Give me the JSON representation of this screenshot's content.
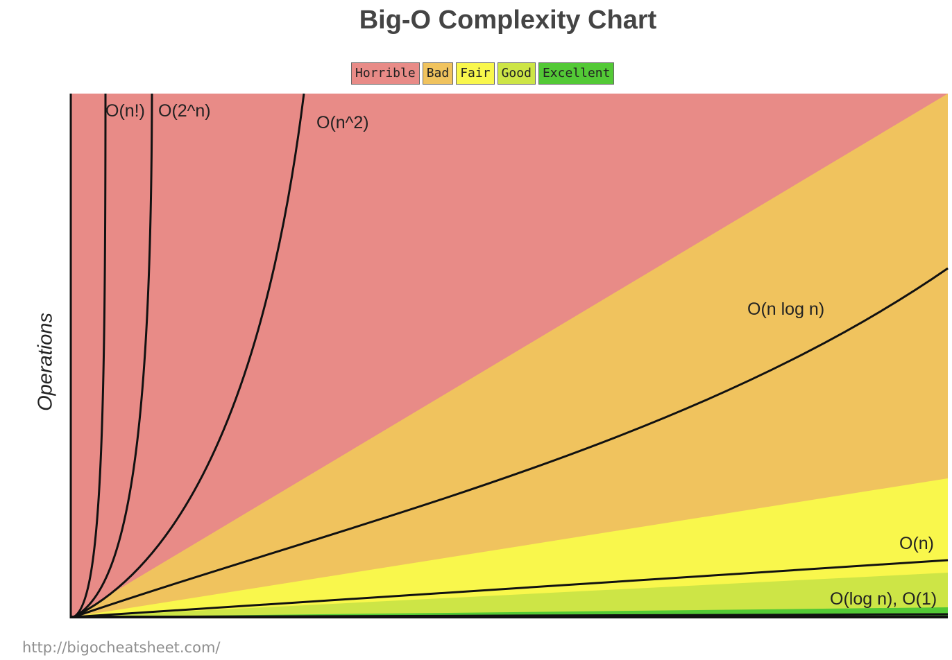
{
  "chart_data": {
    "type": "area",
    "title": "Big-O Complexity Chart",
    "xlabel": "",
    "ylabel": "Operations",
    "grid": false,
    "legend_position": "top-center",
    "legend": [
      {
        "name": "Horrible",
        "color": "#e88b87"
      },
      {
        "name": "Bad",
        "color": "#f0c35e"
      },
      {
        "name": "Fair",
        "color": "#f9f74c"
      },
      {
        "name": "Good",
        "color": "#cde546"
      },
      {
        "name": "Excellent",
        "color": "#53c936"
      }
    ],
    "curves": [
      {
        "name": "O(n!)"
      },
      {
        "name": "O(2^n)"
      },
      {
        "name": "O(n^2)"
      },
      {
        "name": "O(n log n)"
      },
      {
        "name": "O(n)"
      },
      {
        "name": "O(log n), O(1)"
      }
    ]
  },
  "footer": {
    "source": "http://bigocheatsheet.com/"
  }
}
